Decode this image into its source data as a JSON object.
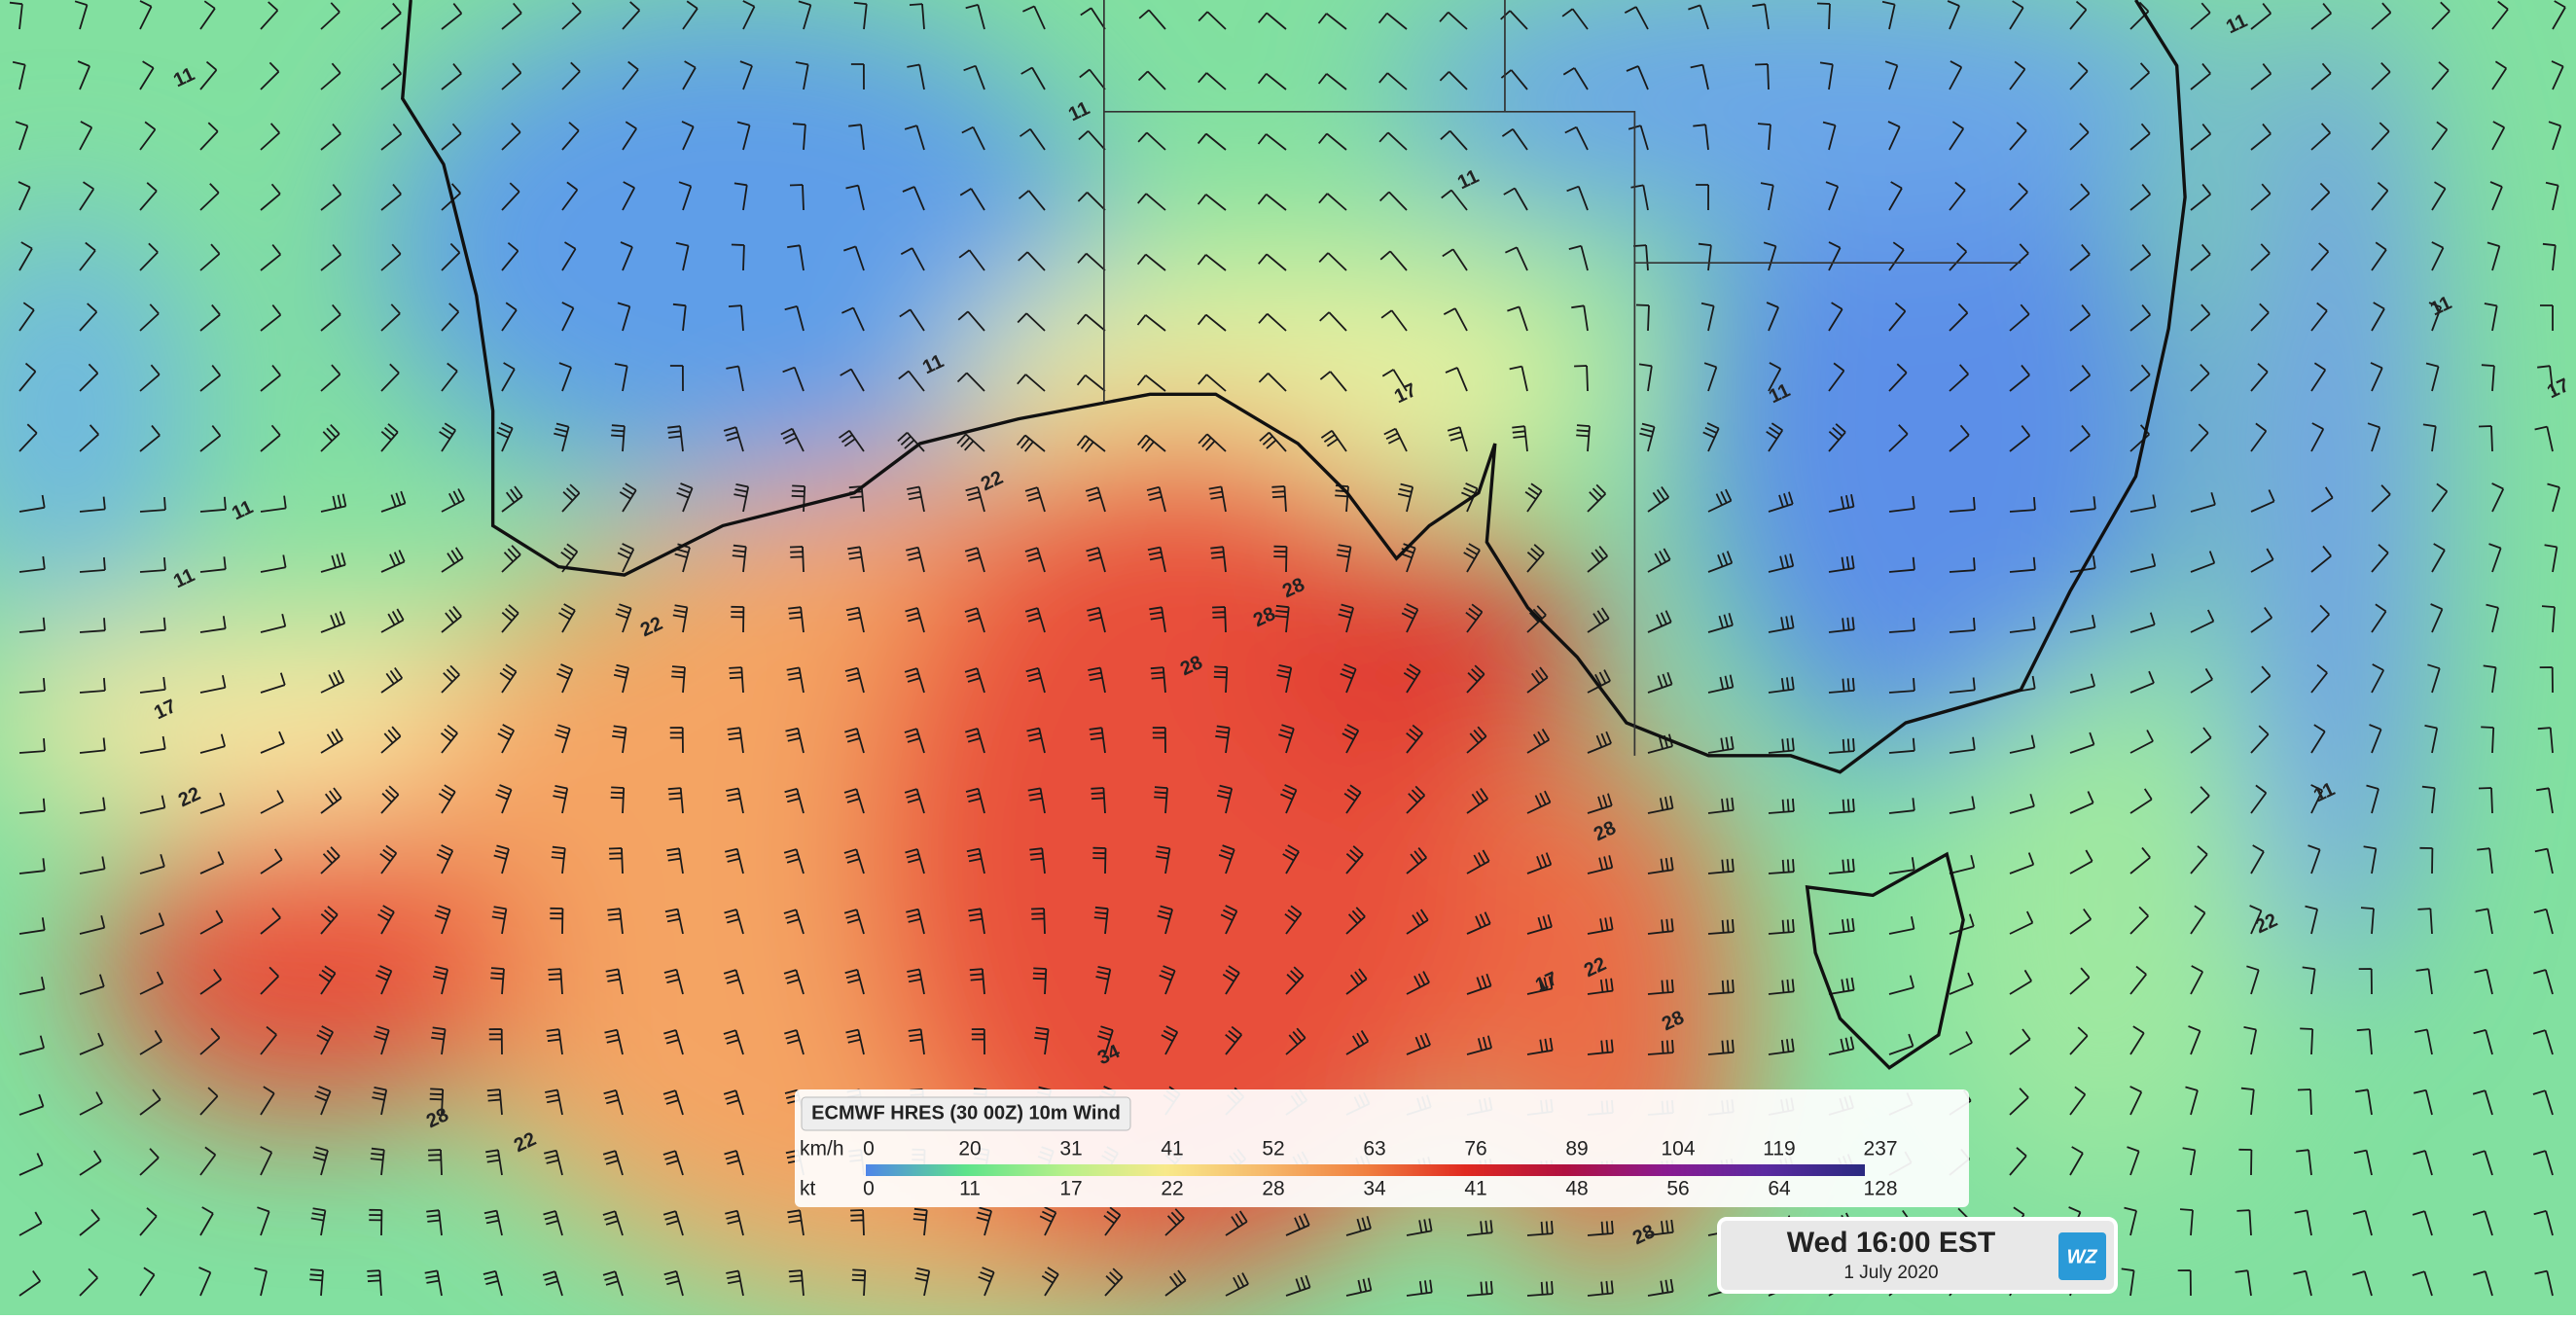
{
  "legend": {
    "title": "ECMWF HRES (30 00Z) 10m Wind",
    "kmh_unit": "km/h",
    "kt_unit": "kt",
    "kmh_ticks": [
      0,
      20,
      31,
      41,
      52,
      63,
      76,
      89,
      104,
      119,
      237
    ],
    "kt_ticks": [
      0,
      11,
      17,
      22,
      28,
      34,
      41,
      48,
      56,
      64,
      128
    ],
    "colors": [
      "#4f86e8",
      "#5ee38a",
      "#b8f08a",
      "#f8e98a",
      "#f6b86a",
      "#f08040",
      "#e02a20",
      "#b01040",
      "#8a1a90",
      "#5a2aa0",
      "#2a2a80"
    ]
  },
  "time_box": {
    "time": "Wed 16:00 EST",
    "date": "1 July 2020",
    "logo": "WZ"
  },
  "contour_labels": [
    11,
    11,
    11,
    11,
    11,
    11,
    11,
    11,
    17,
    17,
    17,
    22,
    22,
    22,
    22,
    28,
    28,
    28,
    28,
    34,
    22,
    28,
    11,
    11,
    17,
    22,
    28,
    28
  ]
}
